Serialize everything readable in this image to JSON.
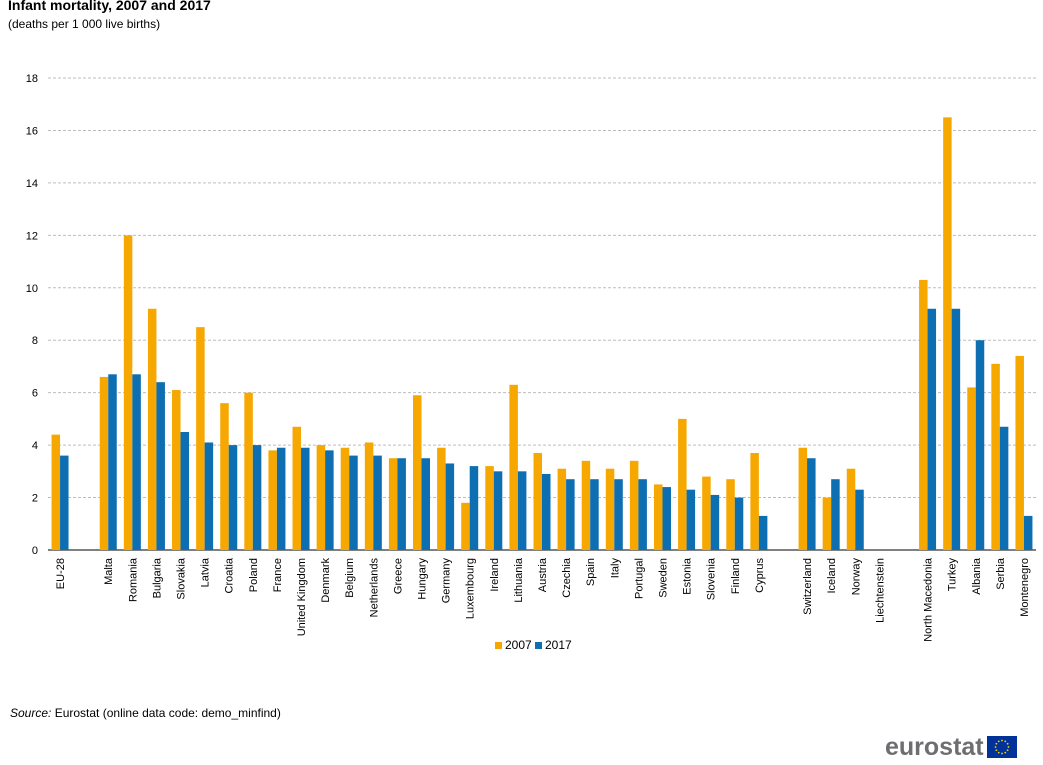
{
  "chart_data": {
    "type": "bar",
    "title": "Infant mortality, 2007 and 2017",
    "subtitle": "(deaths per 1 000 live births)",
    "ylim": [
      0,
      18
    ],
    "yticks": [
      0,
      2,
      4,
      6,
      8,
      10,
      12,
      14,
      16,
      18
    ],
    "grid": true,
    "legend_position": "bottom-center",
    "groups": [
      [
        "EU-28"
      ],
      [
        "Malta",
        "Romania",
        "Bulgaria",
        "Slovakia",
        "Latvia",
        "Croatia",
        "Poland",
        "France",
        "United Kingdom",
        "Denmark",
        "Belgium",
        "Netherlands",
        "Greece",
        "Hungary",
        "Germany",
        "Luxembourg",
        "Ireland",
        "Lithuania",
        "Austria",
        "Czechia",
        "Spain",
        "Italy",
        "Portugal",
        "Sweden",
        "Estonia",
        "Slovenia",
        "Finland",
        "Cyprus"
      ],
      [
        "Switzerland",
        "Iceland",
        "Norway",
        "Liechtenstein"
      ],
      [
        "North Macedonia",
        "Turkey",
        "Albania",
        "Serbia",
        "Montenegro"
      ]
    ],
    "categories": [
      "EU-28",
      "Malta",
      "Romania",
      "Bulgaria",
      "Slovakia",
      "Latvia",
      "Croatia",
      "Poland",
      "France",
      "United Kingdom",
      "Denmark",
      "Belgium",
      "Netherlands",
      "Greece",
      "Hungary",
      "Germany",
      "Luxembourg",
      "Ireland",
      "Lithuania",
      "Austria",
      "Czechia",
      "Spain",
      "Italy",
      "Portugal",
      "Sweden",
      "Estonia",
      "Slovenia",
      "Finland",
      "Cyprus",
      "Switzerland",
      "Iceland",
      "Norway",
      "Liechtenstein",
      "North Macedonia",
      "Turkey",
      "Albania",
      "Serbia",
      "Montenegro"
    ],
    "series": [
      {
        "name": "2007",
        "color": "#f6a800",
        "values": [
          4.4,
          6.6,
          12.0,
          9.2,
          6.1,
          8.5,
          5.6,
          6.0,
          3.8,
          4.7,
          4.0,
          3.9,
          4.1,
          3.5,
          5.9,
          3.9,
          1.8,
          3.2,
          6.3,
          3.7,
          3.1,
          3.4,
          3.1,
          3.4,
          2.5,
          5.0,
          2.8,
          2.7,
          3.7,
          3.9,
          2.0,
          3.1,
          null,
          10.3,
          16.5,
          6.2,
          7.1,
          7.4
        ]
      },
      {
        "name": "2017",
        "color": "#0e6eb2",
        "values": [
          3.6,
          6.7,
          6.7,
          6.4,
          4.5,
          4.1,
          4.0,
          4.0,
          3.9,
          3.9,
          3.8,
          3.6,
          3.6,
          3.5,
          3.5,
          3.3,
          3.2,
          3.0,
          3.0,
          2.9,
          2.7,
          2.7,
          2.7,
          2.7,
          2.4,
          2.3,
          2.1,
          2.0,
          1.3,
          3.5,
          2.7,
          2.3,
          null,
          9.2,
          9.2,
          8.0,
          4.7,
          1.3
        ]
      }
    ]
  },
  "source": {
    "label": "Source:",
    "text": "Eurostat (online data code: demo_minfind)"
  },
  "logo": {
    "text": "eurostat",
    "flag_color": "#003399",
    "star_color": "#ffcc00"
  }
}
